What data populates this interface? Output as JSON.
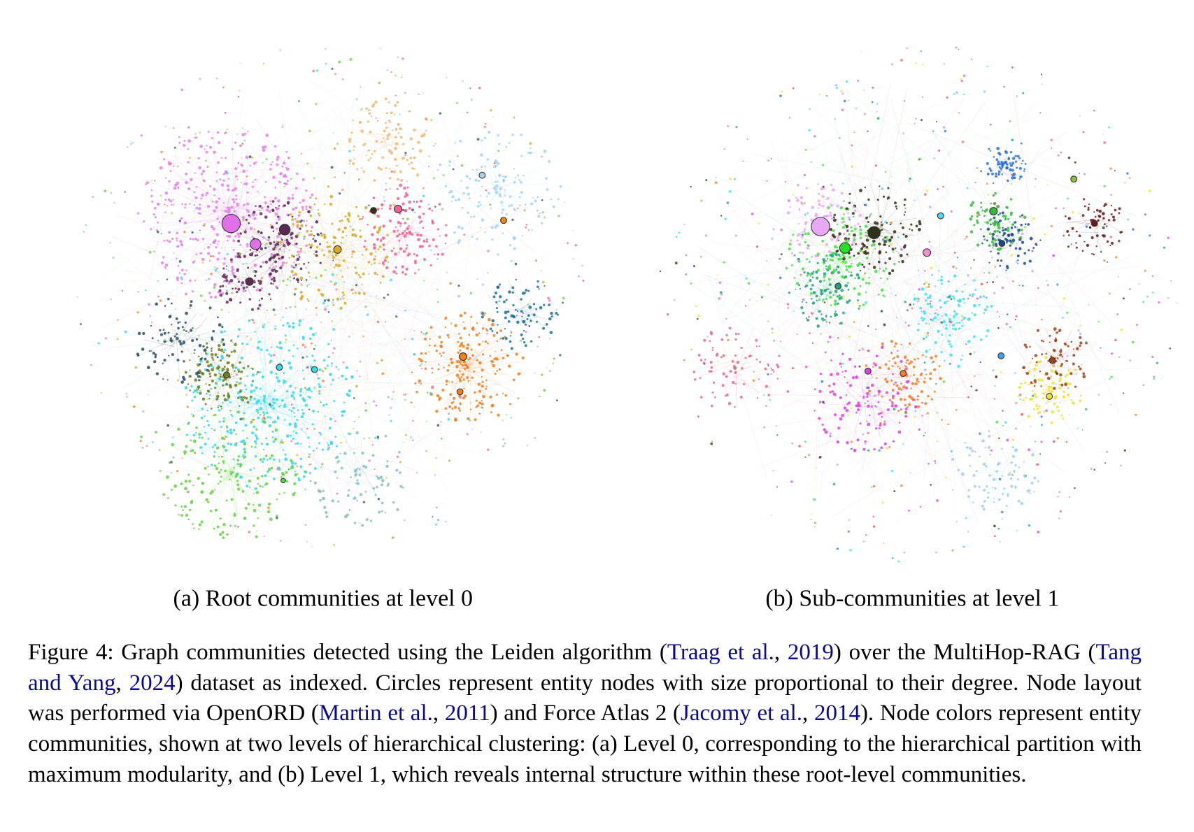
{
  "subfigures": [
    {
      "caption": "(a) Root communities at level 0"
    },
    {
      "caption": "(b) Sub-communities at level 1"
    }
  ],
  "caption": {
    "parts": [
      {
        "text": "Figure 4:  Graph communities detected using the Leiden algorithm ("
      },
      {
        "text": "Traag et al.",
        "link": true
      },
      {
        "text": ", "
      },
      {
        "text": "2019",
        "link": true
      },
      {
        "text": ") over the MultiHop-RAG ("
      },
      {
        "text": "Tang and Yang",
        "link": true
      },
      {
        "text": ", "
      },
      {
        "text": "2024",
        "link": true
      },
      {
        "text": ") dataset as indexed. Circles represent entity nodes with size proportional to their degree.  Node layout was performed via OpenORD ("
      },
      {
        "text": "Martin et al.",
        "link": true
      },
      {
        "text": ", "
      },
      {
        "text": "2011",
        "link": true
      },
      {
        "text": ") and Force Atlas 2 ("
      },
      {
        "text": "Jacomy et al.",
        "link": true
      },
      {
        "text": ", "
      },
      {
        "text": "2014",
        "link": true
      },
      {
        "text": "). Node colors represent entity communities, shown at two levels of hierarchical clustering:  (a) Level 0, corresponding to the hierarchical partition with maximum modularity, and (b) Level 1, which reveals internal structure within these root-level communities."
      }
    ]
  }
}
